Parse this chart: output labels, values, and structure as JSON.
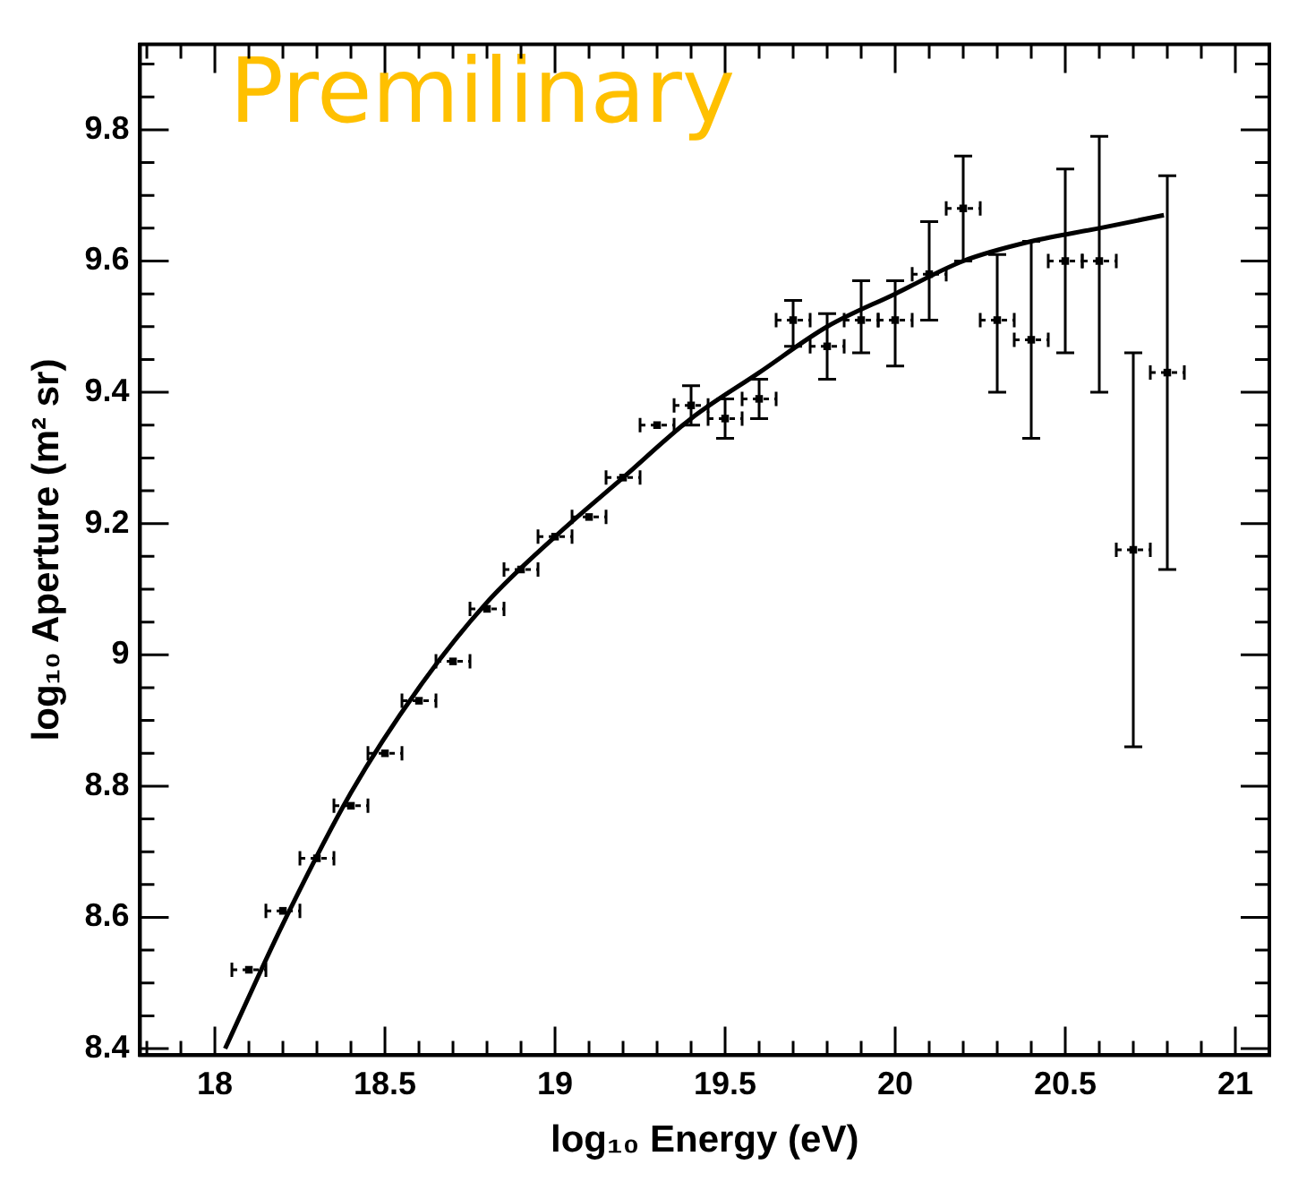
{
  "chart_data": {
    "type": "line",
    "xlabel": "log₁₀ Energy (eV)",
    "ylabel": "log₁₀ Aperture (m² sr)",
    "annotations": [
      "Premilinary"
    ],
    "xlim": [
      17.78,
      21.1
    ],
    "ylim": [
      8.39,
      9.93
    ],
    "xticks": [
      {
        "value": 17.8,
        "label": null
      },
      {
        "value": 17.9,
        "label": null
      },
      18,
      {
        "value": 18.1,
        "label": null
      },
      {
        "value": 18.2,
        "label": null
      },
      {
        "value": 18.3,
        "label": null
      },
      {
        "value": 18.4,
        "label": null
      },
      18.5,
      {
        "value": 18.6,
        "label": null
      },
      {
        "value": 18.7,
        "label": null
      },
      {
        "value": 18.8,
        "label": null
      },
      {
        "value": 18.9,
        "label": null
      },
      19,
      {
        "value": 19.1,
        "label": null
      },
      {
        "value": 19.2,
        "label": null
      },
      {
        "value": 19.3,
        "label": null
      },
      {
        "value": 19.4,
        "label": null
      },
      19.5,
      {
        "value": 19.6,
        "label": null
      },
      {
        "value": 19.7,
        "label": null
      },
      {
        "value": 19.8,
        "label": null
      },
      {
        "value": 19.9,
        "label": null
      },
      20,
      {
        "value": 20.1,
        "label": null
      },
      {
        "value": 20.2,
        "label": null
      },
      {
        "value": 20.3,
        "label": null
      },
      {
        "value": 20.4,
        "label": null
      },
      20.5,
      {
        "value": 20.6,
        "label": null
      },
      {
        "value": 20.7,
        "label": null
      },
      {
        "value": 20.8,
        "label": null
      },
      {
        "value": 20.9,
        "label": null
      },
      21
    ],
    "yticks": [
      8.4,
      {
        "value": 8.45,
        "label": null
      },
      {
        "value": 8.5,
        "label": null
      },
      {
        "value": 8.55,
        "label": null
      },
      8.6,
      {
        "value": 8.65,
        "label": null
      },
      {
        "value": 8.7,
        "label": null
      },
      {
        "value": 8.75,
        "label": null
      },
      8.8,
      {
        "value": 8.85,
        "label": null
      },
      {
        "value": 8.9,
        "label": null
      },
      {
        "value": 8.95,
        "label": null
      },
      9,
      {
        "value": 9.05,
        "label": null
      },
      {
        "value": 9.1,
        "label": null
      },
      {
        "value": 9.15,
        "label": null
      },
      9.2,
      {
        "value": 9.25,
        "label": null
      },
      {
        "value": 9.3,
        "label": null
      },
      {
        "value": 9.35,
        "label": null
      },
      9.4,
      {
        "value": 9.45,
        "label": null
      },
      {
        "value": 9.5,
        "label": null
      },
      {
        "value": 9.55,
        "label": null
      },
      9.6,
      {
        "value": 9.65,
        "label": null
      },
      {
        "value": 9.7,
        "label": null
      },
      {
        "value": 9.75,
        "label": null
      },
      9.8,
      {
        "value": 9.85,
        "label": null
      },
      {
        "value": 9.9,
        "label": null
      }
    ],
    "legend": false,
    "grid": false,
    "series": [
      {
        "type": "scatter",
        "marker": "square",
        "color": "#000000",
        "x": [
          18.1,
          18.2,
          18.3,
          18.4,
          18.5,
          18.6,
          18.7,
          18.8,
          18.9,
          19.0,
          19.1,
          19.2,
          19.3,
          19.4,
          19.5,
          19.6,
          19.7,
          19.8,
          19.9,
          20.0,
          20.1,
          20.2,
          20.3,
          20.4,
          20.5,
          20.6,
          20.7,
          20.8
        ],
        "values": [
          8.52,
          8.61,
          8.69,
          8.77,
          8.85,
          8.93,
          8.99,
          9.07,
          9.13,
          9.18,
          9.21,
          9.27,
          9.35,
          9.38,
          9.36,
          9.39,
          9.51,
          9.47,
          9.51,
          9.51,
          9.58,
          9.68,
          9.51,
          9.48,
          9.6,
          9.6,
          9.16,
          9.43
        ],
        "errors": [
          null,
          null,
          null,
          null,
          null,
          null,
          null,
          null,
          null,
          null,
          null,
          null,
          null,
          [
            9.35,
            9.41
          ],
          [
            9.33,
            9.39
          ],
          [
            9.36,
            9.42
          ],
          [
            9.47,
            9.54
          ],
          [
            9.42,
            9.52
          ],
          [
            9.46,
            9.57
          ],
          [
            9.44,
            9.57
          ],
          [
            9.51,
            9.66
          ],
          [
            9.6,
            9.76
          ],
          [
            9.4,
            9.61
          ],
          [
            9.33,
            9.63
          ],
          [
            9.46,
            9.74
          ],
          [
            9.4,
            9.79
          ],
          [
            8.86,
            9.46
          ],
          [
            9.13,
            9.73
          ]
        ],
        "xerrors": [
          0.05,
          0.05,
          0.05,
          0.05,
          0.05,
          0.05,
          0.05,
          0.05,
          0.05,
          0.05,
          0.05,
          0.05,
          0.05,
          0.05,
          0.05,
          0.05,
          0.05,
          0.05,
          0.05,
          0.05,
          0.05,
          0.05,
          0.05,
          0.05,
          0.05,
          0.05,
          0.05,
          0.05
        ]
      },
      {
        "color": "#000000",
        "x": [
          18.03,
          18.2,
          18.4,
          18.6,
          18.8,
          19.0,
          19.2,
          19.4,
          19.6,
          19.8,
          20.0,
          20.2,
          20.4,
          20.6,
          20.79
        ],
        "values": [
          8.4,
          8.59,
          8.79,
          8.95,
          9.08,
          9.18,
          9.27,
          9.36,
          9.43,
          9.5,
          9.55,
          9.6,
          9.63,
          9.65,
          9.67
        ]
      }
    ]
  }
}
